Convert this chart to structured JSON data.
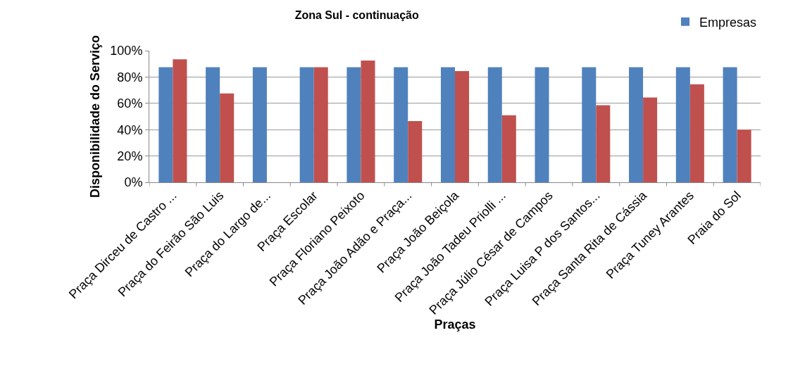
{
  "chart_data": {
    "type": "bar",
    "title": "Zona Sul - continuação",
    "xlabel": "Praças",
    "ylabel": "Disponibilidade do Serviço",
    "categories": [
      "Praça Dirceu de Castro ...",
      "Praça do Feirão São Luis",
      "Praça do Largo de...",
      "Praça Escolar",
      "Praça Floriano Peixoto",
      "Praça João Adão e Praça...",
      "Praça João Beiçola",
      "Praça João Tadeu Priolli ...",
      "Praça Júlio César de Campos",
      "Praça Luisa P dos Santos...",
      "Praça Santa Rita de Cássia",
      "Praça Tuney Arantes",
      "Praia do Sol"
    ],
    "series": [
      {
        "name": "Empresas",
        "color": "#4f81bd",
        "values": [
          87.5,
          87.5,
          87.5,
          87.5,
          87.5,
          87.5,
          87.5,
          87.5,
          87.5,
          87.5,
          87.5,
          87.5,
          87.5
        ]
      },
      {
        "color": "#c0504d",
        "values": [
          93.5,
          67.5,
          null,
          87.5,
          92.5,
          46.5,
          84.5,
          51,
          null,
          58.5,
          64.5,
          74.5,
          40
        ]
      }
    ],
    "ylim": [
      0,
      100
    ],
    "yticks": [
      {
        "value": 0,
        "label": "0%"
      },
      {
        "value": 20,
        "label": "20%"
      },
      {
        "value": 40,
        "label": "40%"
      },
      {
        "value": 60,
        "label": "60%"
      },
      {
        "value": 80,
        "label": "80%"
      },
      {
        "value": 100,
        "label": "100%"
      }
    ],
    "grid": "y",
    "legend": "top right"
  }
}
